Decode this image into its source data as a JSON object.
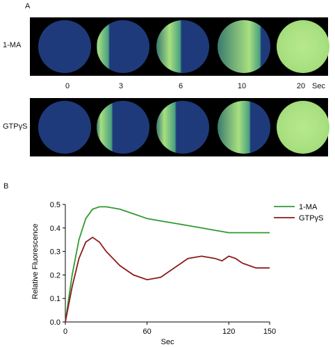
{
  "panel_a": {
    "label": "A",
    "rows": [
      {
        "label": "1-MA",
        "fill_fractions": [
          0.0,
          0.22,
          0.45,
          0.8,
          1.0
        ]
      },
      {
        "label": "GTPγS",
        "fill_fractions": [
          0.0,
          0.28,
          0.35,
          0.6,
          1.0
        ]
      }
    ],
    "time_labels": [
      "0",
      "3",
      "6",
      "10",
      "20"
    ],
    "time_unit": "Sec",
    "colors": {
      "unstimulated": "#1f3a7a",
      "stimulated": "#a8e080",
      "background": "#000000"
    }
  },
  "panel_b": {
    "label": "B",
    "chart_data": {
      "type": "line",
      "xlabel": "Sec",
      "ylabel": "Relative Fluorescence",
      "xlim": [
        0,
        150
      ],
      "ylim": [
        0,
        0.5
      ],
      "xticks": [
        "0",
        "60",
        "120",
        "150"
      ],
      "yticks": [
        "0.0",
        "0.1",
        "0.2",
        "0.3",
        "0.4",
        "0.5"
      ],
      "legend_position": "top-right",
      "series": [
        {
          "name": "1-MA",
          "color": "#2e9a2e",
          "x": [
            0,
            5,
            10,
            15,
            20,
            25,
            30,
            40,
            50,
            60,
            70,
            80,
            90,
            100,
            110,
            120,
            130,
            140,
            150
          ],
          "y": [
            0.0,
            0.2,
            0.35,
            0.44,
            0.48,
            0.49,
            0.49,
            0.48,
            0.46,
            0.44,
            0.43,
            0.42,
            0.41,
            0.4,
            0.39,
            0.38,
            0.38,
            0.38,
            0.38
          ]
        },
        {
          "name": "GTPγS",
          "color": "#8a1a1a",
          "x": [
            0,
            5,
            10,
            15,
            20,
            25,
            30,
            35,
            40,
            50,
            60,
            70,
            80,
            90,
            100,
            110,
            115,
            120,
            125,
            130,
            140,
            150
          ],
          "y": [
            0.0,
            0.15,
            0.27,
            0.34,
            0.36,
            0.34,
            0.3,
            0.27,
            0.24,
            0.2,
            0.18,
            0.19,
            0.23,
            0.27,
            0.28,
            0.27,
            0.26,
            0.28,
            0.27,
            0.25,
            0.23,
            0.23
          ]
        }
      ]
    }
  }
}
